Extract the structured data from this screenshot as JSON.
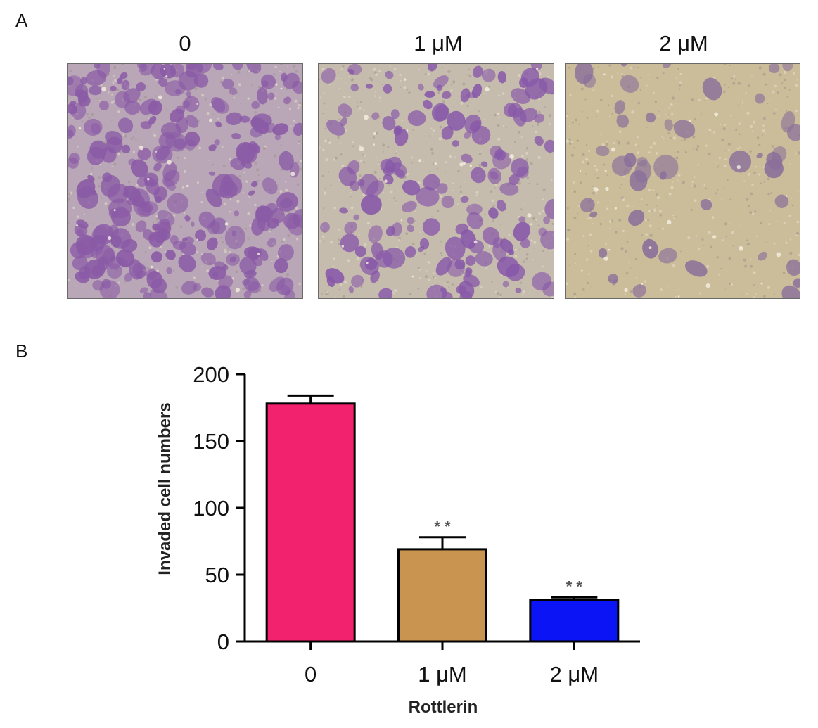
{
  "panel_a": {
    "label": "A",
    "images": [
      {
        "label": "0",
        "stain": "dense",
        "base_color": "#b9a6b6",
        "cell_color": "#8a5aa6"
      },
      {
        "label": "1 μM",
        "stain": "medium",
        "base_color": "#c6bcae",
        "cell_color": "#8757a9"
      },
      {
        "label": "2 μM",
        "stain": "sparse",
        "base_color": "#cbbd9a",
        "cell_color": "#8a6f9a"
      }
    ]
  },
  "panel_b": {
    "label": "B"
  },
  "chart_data": {
    "type": "bar",
    "categories": [
      "0",
      "1 μM",
      "2 μM"
    ],
    "values": [
      178,
      69,
      31
    ],
    "errors": [
      6,
      9,
      2
    ],
    "significance": [
      "",
      "* *",
      "* *"
    ],
    "colors": [
      "#f2226f",
      "#c9944f",
      "#0a14f5"
    ],
    "xlabel": "Rottlerin",
    "ylabel": "Invaded cell numbers",
    "ylim": [
      0,
      200
    ],
    "yticks": [
      0,
      50,
      100,
      150,
      200
    ]
  }
}
